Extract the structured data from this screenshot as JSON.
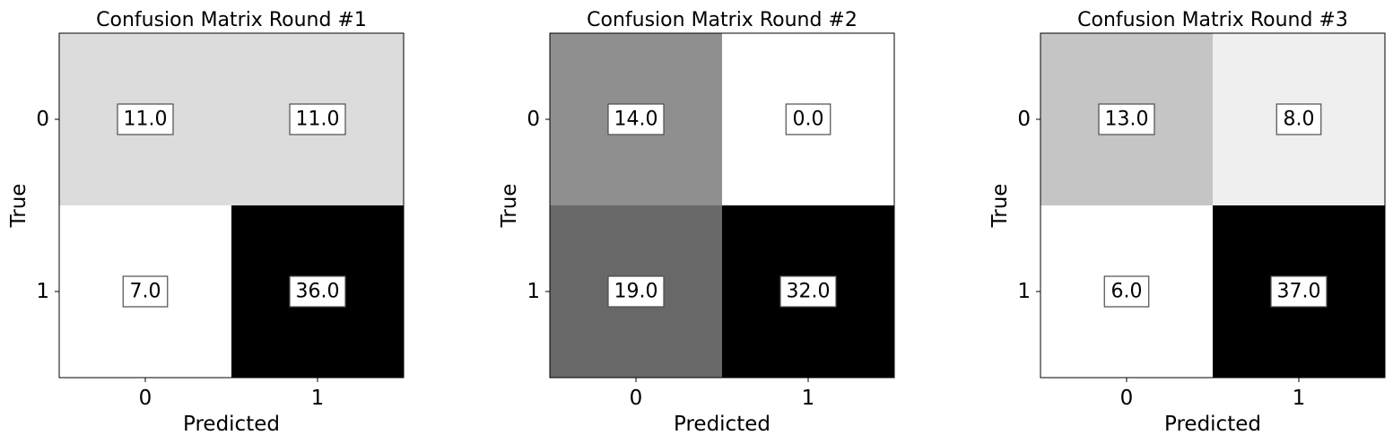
{
  "chart_data": [
    {
      "type": "heatmap",
      "title": "Confusion Matrix Round #1",
      "xlabel": "Predicted",
      "ylabel": "True",
      "x_categories": [
        "0",
        "1"
      ],
      "y_categories": [
        "0",
        "1"
      ],
      "values": [
        [
          11.0,
          11.0
        ],
        [
          7.0,
          36.0
        ]
      ],
      "value_labels": [
        [
          "11.0",
          "11.0"
        ],
        [
          "7.0",
          "36.0"
        ]
      ],
      "colormap": "greys",
      "color_range": [
        7.0,
        36.0
      ]
    },
    {
      "type": "heatmap",
      "title": "Confusion Matrix Round #2",
      "xlabel": "Predicted",
      "ylabel": "True",
      "x_categories": [
        "0",
        "1"
      ],
      "y_categories": [
        "0",
        "1"
      ],
      "values": [
        [
          14.0,
          0.0
        ],
        [
          19.0,
          32.0
        ]
      ],
      "value_labels": [
        [
          "14.0",
          "0.0"
        ],
        [
          "19.0",
          "32.0"
        ]
      ],
      "colormap": "greys",
      "color_range": [
        0.0,
        32.0
      ]
    },
    {
      "type": "heatmap",
      "title": "Confusion Matrix Round #3",
      "xlabel": "Predicted",
      "ylabel": "True",
      "x_categories": [
        "0",
        "1"
      ],
      "y_categories": [
        "0",
        "1"
      ],
      "values": [
        [
          13.0,
          8.0
        ],
        [
          6.0,
          37.0
        ]
      ],
      "value_labels": [
        [
          "13.0",
          "8.0"
        ],
        [
          "6.0",
          "37.0"
        ]
      ],
      "colormap": "greys",
      "color_range": [
        6.0,
        37.0
      ]
    }
  ]
}
